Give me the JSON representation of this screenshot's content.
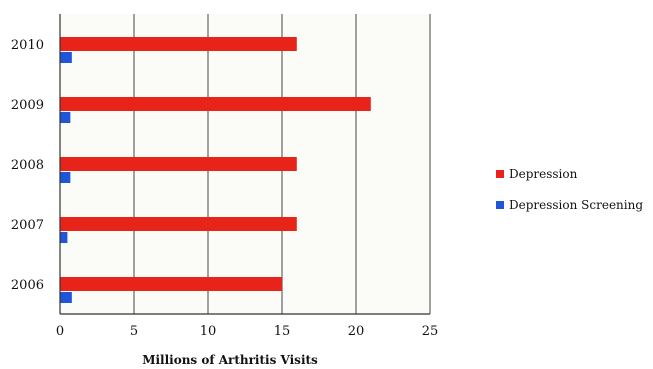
{
  "chart_data": {
    "type": "bar",
    "orientation": "horizontal",
    "title": "",
    "xlabel": "Millions of Arthritis Visits",
    "ylabel": "",
    "categories": [
      "2006",
      "2007",
      "2008",
      "2009",
      "2010"
    ],
    "series": [
      {
        "name": "Depression",
        "values": [
          15,
          16,
          16,
          21,
          16
        ],
        "color": "#e8231a"
      },
      {
        "name": "Depression Screening",
        "values": [
          0.8,
          0.5,
          0.7,
          0.7,
          0.8
        ],
        "color": "#1f56d8"
      }
    ],
    "xlim": [
      0,
      25
    ],
    "xticks": [
      "0",
      "5",
      "10",
      "15",
      "20",
      "25"
    ],
    "grid": "vertical",
    "legend": "right"
  }
}
